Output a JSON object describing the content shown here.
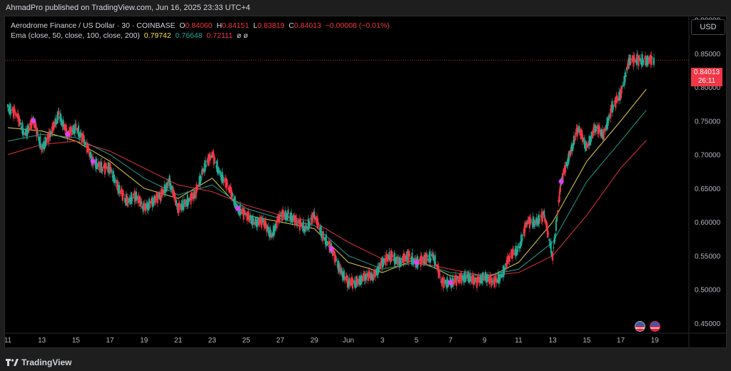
{
  "header": {
    "published": "AhmadPro published on TradingView.com, Jun 16, 2025 23:33 UTC+4"
  },
  "legend": {
    "symbol": "Aerodrome Finance / US Dollar · 30 · COINBASE",
    "o_label": "O",
    "o_value": "0.84060",
    "h_label": "H",
    "h_value": "0.84151",
    "l_label": "L",
    "l_value": "0.83819",
    "c_label": "C",
    "c_value": "0.84013",
    "change": "−0.00008 (−0.01%)",
    "ema_label": "Ema (close, 50, close, 100, close, 200)",
    "ema1": "0.79742",
    "ema2": "0.76648",
    "ema3": "0.72111",
    "ema_icons": "ø ø"
  },
  "currency_button": "USD",
  "price_tag": {
    "price": "0.84013",
    "countdown": "26:11"
  },
  "footer": {
    "brand": "TradingView"
  },
  "colors": {
    "up": "#22ab94",
    "down": "#f23645",
    "ema50": "#f5e14b",
    "ema100": "#22ab94",
    "ema200": "#f23645",
    "marker": "#e040fb"
  },
  "chart_data": {
    "type": "line",
    "title": "Aerodrome Finance / US Dollar · 30 · COINBASE",
    "y_ticks": [
      "0.90000",
      "0.85000",
      "0.80000",
      "0.75000",
      "0.70000",
      "0.65000",
      "0.60000",
      "0.55000",
      "0.50000",
      "0.45000"
    ],
    "ylim": [
      0.435,
      0.905
    ],
    "x_ticks": [
      "11",
      "13",
      "15",
      "17",
      "19",
      "21",
      "23",
      "25",
      "27",
      "29",
      "Jun",
      "3",
      "5",
      "7",
      "9",
      "11",
      "13",
      "15",
      "17",
      "19"
    ],
    "x_range_days": [
      0,
      40
    ],
    "x_tick_days": [
      0,
      2,
      4,
      6,
      8,
      10,
      12,
      14,
      16,
      18,
      20,
      22,
      24,
      26,
      28,
      30,
      32,
      34,
      36,
      38
    ],
    "series": [
      {
        "name": "price",
        "x": [
          0,
          0.5,
          1,
          1.5,
          2,
          2.5,
          3,
          3.5,
          4,
          4.5,
          5,
          5.5,
          6,
          6.5,
          7,
          7.5,
          8,
          8.5,
          9,
          9.5,
          10,
          10.5,
          11,
          11.5,
          12,
          12.5,
          13,
          13.5,
          14,
          14.5,
          15,
          15.5,
          16,
          16.5,
          17,
          17.5,
          18,
          18.5,
          19,
          19.5,
          20,
          20.5,
          21,
          21.5,
          22,
          22.5,
          23,
          23.5,
          24,
          24.5,
          25,
          25.5,
          26,
          26.5,
          27,
          27.5,
          28,
          28.5,
          29,
          29.5,
          30,
          30.5,
          31,
          31.5,
          32,
          32.5,
          33,
          33.5,
          34,
          34.5,
          35,
          35.5,
          36,
          36.5,
          37,
          37.5,
          38
        ],
        "y": [
          0.77,
          0.76,
          0.73,
          0.75,
          0.71,
          0.73,
          0.76,
          0.73,
          0.74,
          0.72,
          0.69,
          0.68,
          0.68,
          0.65,
          0.63,
          0.64,
          0.62,
          0.63,
          0.64,
          0.66,
          0.62,
          0.63,
          0.64,
          0.68,
          0.7,
          0.67,
          0.65,
          0.62,
          0.61,
          0.6,
          0.6,
          0.58,
          0.61,
          0.61,
          0.6,
          0.59,
          0.61,
          0.58,
          0.56,
          0.53,
          0.51,
          0.51,
          0.52,
          0.52,
          0.54,
          0.55,
          0.54,
          0.55,
          0.54,
          0.545,
          0.55,
          0.51,
          0.51,
          0.515,
          0.52,
          0.51,
          0.52,
          0.51,
          0.52,
          0.55,
          0.56,
          0.6,
          0.6,
          0.61,
          0.55,
          0.66,
          0.7,
          0.74,
          0.71,
          0.74,
          0.73,
          0.77,
          0.79,
          0.84,
          0.84,
          0.84,
          0.84
        ]
      },
      {
        "name": "Ema 50",
        "x": [
          0,
          2,
          4,
          6,
          8,
          10,
          12,
          14,
          16,
          18,
          20,
          22,
          24,
          26,
          28,
          30,
          32,
          34,
          36,
          37.5
        ],
        "y": [
          0.74,
          0.735,
          0.72,
          0.69,
          0.65,
          0.635,
          0.665,
          0.61,
          0.6,
          0.59,
          0.54,
          0.525,
          0.545,
          0.52,
          0.515,
          0.54,
          0.6,
          0.69,
          0.75,
          0.797
        ]
      },
      {
        "name": "Ema 100",
        "x": [
          0,
          2,
          4,
          6,
          8,
          10,
          12,
          14,
          16,
          18,
          20,
          22,
          24,
          26,
          28,
          30,
          32,
          34,
          36,
          37.5
        ],
        "y": [
          0.72,
          0.73,
          0.725,
          0.7,
          0.665,
          0.64,
          0.655,
          0.62,
          0.605,
          0.595,
          0.55,
          0.53,
          0.54,
          0.525,
          0.52,
          0.53,
          0.57,
          0.66,
          0.72,
          0.766
        ]
      },
      {
        "name": "Ema 200",
        "x": [
          0,
          2,
          4,
          6,
          8,
          10,
          12,
          14,
          16,
          18,
          20,
          22,
          24,
          26,
          28,
          30,
          32,
          34,
          36,
          37.5
        ],
        "y": [
          0.7,
          0.715,
          0.72,
          0.705,
          0.68,
          0.655,
          0.645,
          0.625,
          0.61,
          0.6,
          0.57,
          0.545,
          0.54,
          0.53,
          0.52,
          0.525,
          0.55,
          0.61,
          0.68,
          0.721
        ]
      }
    ],
    "last_price": 0.84013
  }
}
